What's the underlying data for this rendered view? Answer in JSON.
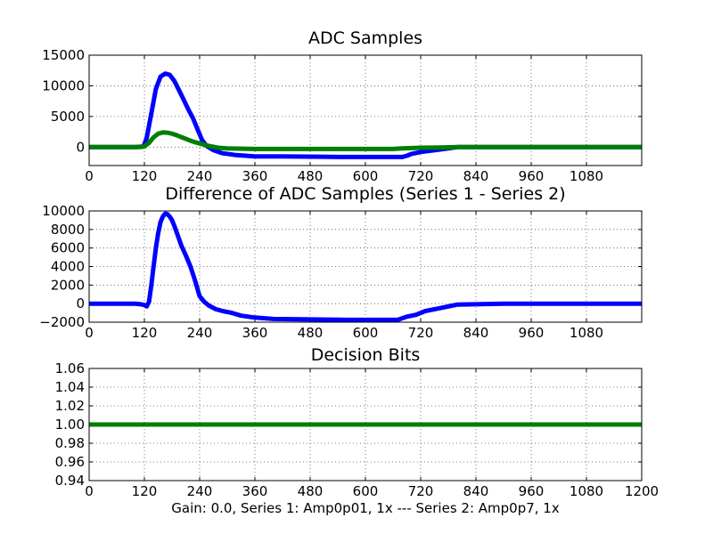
{
  "figure": {
    "caption": "Gain: 0.0, Series 1: Amp0p01, 1x --- Series 2: Amp0p7, 1x"
  },
  "colors": {
    "series1": "#0000ff",
    "series2": "#007f00",
    "grid": "#555555"
  },
  "chart_data": [
    {
      "type": "line",
      "title": "ADC Samples",
      "xlim": [
        0,
        1200
      ],
      "ylim": [
        -3000,
        15000
      ],
      "xticks": [
        0,
        120,
        240,
        360,
        480,
        600,
        720,
        840,
        960,
        1080
      ],
      "yticks": [
        0,
        5000,
        10000,
        15000
      ],
      "grid": true,
      "series": [
        {
          "x": [
            0,
            100,
            118,
            125,
            135,
            145,
            155,
            165,
            175,
            185,
            195,
            205,
            215,
            225,
            235,
            245,
            255,
            270,
            290,
            320,
            360,
            420,
            480,
            560,
            640,
            680,
            690,
            700,
            720,
            760,
            800,
            900,
            1000,
            1100,
            1200
          ],
          "y": [
            0,
            0,
            100,
            1500,
            5500,
            9500,
            11500,
            12000,
            11800,
            10800,
            9300,
            7800,
            6200,
            4800,
            3000,
            1200,
            200,
            -500,
            -1000,
            -1300,
            -1500,
            -1500,
            -1550,
            -1600,
            -1600,
            -1600,
            -1400,
            -1100,
            -800,
            -400,
            0,
            0,
            0,
            0,
            0
          ]
        },
        {
          "x": [
            0,
            110,
            120,
            130,
            140,
            150,
            160,
            170,
            180,
            190,
            200,
            210,
            220,
            230,
            240,
            250,
            260,
            280,
            300,
            360,
            480,
            600,
            660,
            680,
            700,
            720,
            760,
            800,
            900,
            1000,
            1100,
            1200
          ],
          "y": [
            0,
            0,
            100,
            700,
            1600,
            2200,
            2400,
            2350,
            2200,
            1950,
            1650,
            1350,
            1050,
            800,
            600,
            400,
            200,
            -100,
            -200,
            -300,
            -300,
            -300,
            -300,
            -200,
            -150,
            -100,
            -50,
            0,
            0,
            0,
            0,
            0
          ]
        }
      ]
    },
    {
      "type": "line",
      "title": "Difference of ADC Samples (Series 1 - Series 2)",
      "xlim": [
        0,
        1200
      ],
      "ylim": [
        -2000,
        10000
      ],
      "xticks": [
        0,
        120,
        240,
        360,
        480,
        600,
        720,
        840,
        960,
        1080
      ],
      "yticks": [
        -2000,
        0,
        2000,
        4000,
        6000,
        8000,
        10000
      ],
      "grid": true,
      "series": [
        {
          "x": [
            0,
            100,
            110,
            120,
            125,
            130,
            135,
            140,
            145,
            150,
            155,
            160,
            165,
            170,
            175,
            180,
            185,
            190,
            195,
            200,
            210,
            220,
            230,
            240,
            250,
            260,
            275,
            290,
            310,
            330,
            360,
            400,
            480,
            560,
            640,
            670,
            690,
            710,
            730,
            760,
            800,
            900,
            1000,
            1100,
            1200
          ],
          "y": [
            0,
            0,
            -50,
            -150,
            -300,
            200,
            2000,
            4000,
            6000,
            7600,
            8800,
            9400,
            9700,
            9650,
            9400,
            9000,
            8400,
            7700,
            7000,
            6300,
            5200,
            4000,
            2500,
            800,
            200,
            -200,
            -600,
            -800,
            -1000,
            -1300,
            -1500,
            -1650,
            -1700,
            -1750,
            -1750,
            -1750,
            -1400,
            -1200,
            -800,
            -500,
            -100,
            0,
            0,
            0,
            0
          ]
        }
      ]
    },
    {
      "type": "line",
      "title": "Decision Bits",
      "xlim": [
        0,
        1200
      ],
      "ylim": [
        0.94,
        1.06
      ],
      "xticks": [
        0,
        120,
        240,
        360,
        480,
        600,
        720,
        840,
        960,
        1080,
        1200
      ],
      "yticks": [
        0.94,
        0.96,
        0.98,
        1.0,
        1.02,
        1.04,
        1.06
      ],
      "ytick_labels": [
        "0.94",
        "0.96",
        "0.98",
        "1.00",
        "1.02",
        "1.04",
        "1.06"
      ],
      "grid": true,
      "series": [
        {
          "x": [
            0,
            1200
          ],
          "y": [
            1.0,
            1.0
          ]
        }
      ]
    }
  ]
}
